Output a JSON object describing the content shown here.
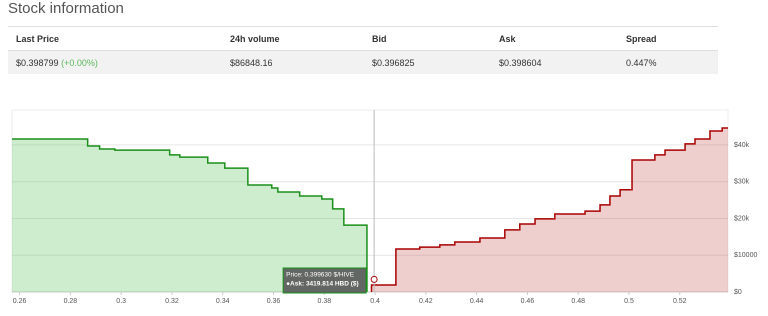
{
  "header": {
    "title": "Stock information"
  },
  "table": {
    "columns": [
      "Last Price",
      "24h volume",
      "Bid",
      "Ask",
      "Spread"
    ],
    "row": {
      "last_price": "$0.398799",
      "change": "(+0.00%)",
      "volume": "$86848.16",
      "bid": "$0.396825",
      "ask": "$0.398604",
      "spread": "0.447%"
    }
  },
  "chart_data": {
    "type": "depth",
    "series": [
      {
        "color": "#1a8f1a",
        "fill": "rgba(60,180,60,0.25)",
        "x": [
          0.257,
          0.2868,
          0.2915,
          0.2975,
          0.3191,
          0.3231,
          0.3341,
          0.3408,
          0.3499,
          0.3593,
          0.3617,
          0.3703,
          0.379,
          0.3833,
          0.3877,
          0.3968
        ],
        "values": [
          41600,
          39700,
          38900,
          38600,
          37300,
          36700,
          35100,
          33700,
          29100,
          28300,
          27200,
          26100,
          25300,
          22600,
          18200,
          1500
        ]
      },
      {
        "color": "#a80000",
        "fill": "rgba(190,60,60,0.25)",
        "x": [
          0.3986,
          0.4082,
          0.4176,
          0.4255,
          0.4314,
          0.4413,
          0.4511,
          0.457,
          0.463,
          0.4708,
          0.4827,
          0.4886,
          0.4925,
          0.4965,
          0.5012,
          0.5102,
          0.5142,
          0.5221,
          0.526,
          0.5319,
          0.5367
        ],
        "values": [
          1900,
          11700,
          12200,
          12800,
          13600,
          14700,
          16900,
          18500,
          19900,
          21200,
          22000,
          23700,
          26100,
          27800,
          35900,
          37300,
          38600,
          40300,
          41600,
          43800,
          44600
        ]
      }
    ],
    "xlim": [
      0.257,
      0.539
    ],
    "xticks": [
      0.26,
      0.28,
      0.3,
      0.32,
      0.34,
      0.36,
      0.38,
      0.4,
      0.42,
      0.44,
      0.46,
      0.48,
      0.5,
      0.52
    ],
    "ylim": [
      0,
      49500
    ],
    "yticks": [
      {
        "value": 0,
        "label": "$0"
      },
      {
        "value": 10000,
        "label": "$10000"
      },
      {
        "value": 20000,
        "label": "$20k"
      },
      {
        "value": 30000,
        "label": "$30k"
      },
      {
        "value": 40000,
        "label": "$40k"
      }
    ],
    "grid": true,
    "tooltip": {
      "line1": "Price: 0.399630 $/HIVE",
      "line2": "●Ask: 3419.814 HBD ($)",
      "x": 0.39963,
      "value": 3419.814
    }
  }
}
